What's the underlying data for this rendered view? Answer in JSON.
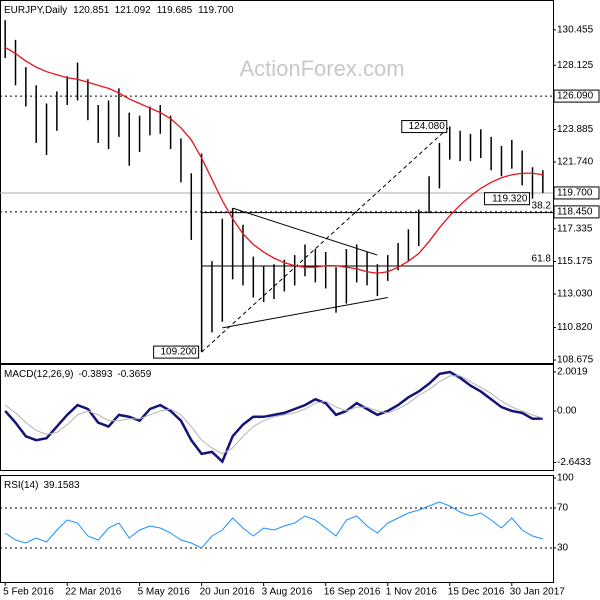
{
  "chart_data": [
    {
      "type": "ohlc",
      "title": "EURJPY,Daily",
      "ohlc": [
        {
          "value": 120.851,
          "label": "120.851"
        },
        {
          "value": 121.092,
          "label": "121.092"
        },
        {
          "value": 119.685,
          "label": "119.685"
        },
        {
          "value": 119.7,
          "label": "119.700"
        }
      ],
      "watermark": "ActionForex.com",
      "categories": [
        "5 Feb 2016",
        null,
        null,
        null,
        null,
        null,
        "22 Mar 2016",
        null,
        null,
        null,
        null,
        null,
        null,
        "5 May 2016",
        null,
        null,
        null,
        null,
        null,
        "20 Jun 2016",
        null,
        null,
        null,
        null,
        null,
        "3 Aug 2016",
        null,
        null,
        null,
        null,
        null,
        "16 Sep 2016",
        null,
        null,
        null,
        null,
        null,
        "1 Nov 2016",
        null,
        null,
        null,
        null,
        null,
        "15 Dec 2016",
        null,
        null,
        null,
        null,
        null,
        "30 Jan 2017",
        null,
        null,
        null
      ],
      "high": [
        131.1,
        129.8,
        128.0,
        126.8,
        125.6,
        126.4,
        127.4,
        128.3,
        127.2,
        125.5,
        125.8,
        126.6,
        125.0,
        124.8,
        125.4,
        125.5,
        124.8,
        123.3,
        121.0,
        122.3,
        115.2,
        118.0,
        118.7,
        117.6,
        115.5,
        114.9,
        115.0,
        115.3,
        115.6,
        116.3,
        116.0,
        115.8,
        114.8,
        116.0,
        116.3,
        115.8,
        115.0,
        115.6,
        116.4,
        117.3,
        118.6,
        120.8,
        123.0,
        124.08,
        123.8,
        123.6,
        123.9,
        123.4,
        122.8,
        123.2,
        122.5,
        121.4,
        121.2
      ],
      "low": [
        128.6,
        126.8,
        125.4,
        123.0,
        122.2,
        123.8,
        125.5,
        125.8,
        124.5,
        123.0,
        122.6,
        123.4,
        121.5,
        122.4,
        123.5,
        123.6,
        122.6,
        120.4,
        116.6,
        109.2,
        110.5,
        111.2,
        114.0,
        113.6,
        112.8,
        112.5,
        112.7,
        113.2,
        113.6,
        114.2,
        113.8,
        113.4,
        111.8,
        112.4,
        113.8,
        113.6,
        112.9,
        113.9,
        114.6,
        115.2,
        116.2,
        118.4,
        120.0,
        121.9,
        121.8,
        121.8,
        122.0,
        121.2,
        120.8,
        121.3,
        120.2,
        119.32,
        119.7
      ],
      "color": "#000000",
      "ma": {
        "color": "#e8141c",
        "values": [
          129.3,
          128.9,
          128.4,
          128.0,
          127.7,
          127.5,
          127.3,
          127.2,
          127.0,
          126.8,
          126.6,
          126.3,
          125.9,
          125.6,
          125.3,
          125.0,
          124.6,
          124.0,
          123.2,
          122.0,
          120.6,
          119.2,
          118.0,
          117.0,
          116.3,
          115.8,
          115.4,
          115.1,
          114.9,
          114.8,
          114.8,
          114.9,
          114.9,
          114.8,
          114.7,
          114.5,
          114.4,
          114.5,
          114.8,
          115.2,
          115.7,
          116.5,
          117.4,
          118.2,
          118.9,
          119.5,
          120.0,
          120.4,
          120.7,
          120.9,
          121.0,
          121.0,
          120.9
        ]
      },
      "ylim": [
        108.48,
        132.43
      ],
      "yticks": [
        130.455,
        128.125,
        123.885,
        {
          "value": 121.74,
          "label": "121.740"
        },
        117.335,
        115.175,
        {
          "value": 113.03,
          "label": "113.030"
        },
        {
          "value": 110.82,
          "label": "110.820"
        },
        108.675
      ],
      "levels": [
        {
          "value": 126.09,
          "label": "126.090",
          "style": "dotted"
        },
        {
          "value": 119.7,
          "label": "119.700",
          "style": "solid"
        },
        {
          "value": 118.45,
          "label": "118.450",
          "style": "dotted"
        }
      ],
      "fibs": [
        {
          "label": "38.2",
          "value": 118.4,
          "from": 19
        },
        {
          "label": "61.8",
          "value": 114.88,
          "from": 19
        }
      ],
      "trendlines": [
        {
          "points": [
            [
              22,
              118.7
            ],
            [
              36,
              115.6
            ]
          ],
          "style": "solid"
        },
        {
          "points": [
            [
              21,
              110.8
            ],
            [
              37,
              112.8
            ]
          ],
          "style": "solid"
        },
        {
          "points": [
            [
              19,
              109.2
            ],
            [
              43,
              124.08
            ]
          ],
          "style": "dashed"
        }
      ],
      "annotations": [
        {
          "label": "124.080",
          "value": 124.08,
          "index": 43
        },
        {
          "label": "119.320",
          "value": 119.32,
          "index": 51
        },
        {
          "label": "109.200",
          "value": 109.2,
          "index": 19
        }
      ]
    },
    {
      "type": "line",
      "title": "MACD(12,26,9)",
      "readout": [
        -0.3893,
        -0.3659
      ],
      "ylim": [
        -3.03,
        2.41
      ],
      "yticks": [
        2.0019,
        {
          "value": 0,
          "label": "0.00"
        },
        -2.6433
      ],
      "series": [
        {
          "color": "#141478",
          "width": 2.5,
          "values": [
            0.0,
            -0.6,
            -1.3,
            -1.5,
            -1.4,
            -0.8,
            -0.2,
            0.3,
            0.1,
            -0.6,
            -0.8,
            -0.2,
            -0.3,
            -0.5,
            0.1,
            0.3,
            0.0,
            -0.5,
            -1.5,
            -2.2,
            -2.1,
            -2.6,
            -1.3,
            -0.7,
            -0.3,
            -0.3,
            -0.2,
            -0.1,
            0.1,
            0.3,
            0.6,
            0.4,
            -0.2,
            0.0,
            0.4,
            0.1,
            -0.2,
            0.0,
            0.3,
            0.7,
            1.0,
            1.4,
            1.9,
            2.0,
            1.7,
            1.3,
            1.0,
            0.6,
            0.2,
            0.0,
            -0.1,
            -0.4,
            -0.3893
          ]
        },
        {
          "color": "#b4b4b4",
          "width": 1,
          "values": [
            0.3,
            -0.1,
            -0.6,
            -1.0,
            -1.2,
            -1.1,
            -0.7,
            -0.2,
            0.0,
            -0.2,
            -0.5,
            -0.5,
            -0.4,
            -0.4,
            -0.2,
            0.0,
            0.1,
            -0.2,
            -0.8,
            -1.5,
            -1.9,
            -2.2,
            -1.9,
            -1.3,
            -0.8,
            -0.5,
            -0.3,
            -0.2,
            -0.1,
            0.1,
            0.4,
            0.5,
            0.2,
            0.0,
            0.2,
            0.2,
            0.0,
            -0.1,
            0.1,
            0.4,
            0.8,
            1.1,
            1.5,
            1.8,
            1.8,
            1.5,
            1.2,
            0.9,
            0.5,
            0.2,
            0.0,
            -0.2,
            -0.3659
          ]
        }
      ]
    },
    {
      "type": "line",
      "title": "RSI(14)",
      "readout": [
        39.1583
      ],
      "ylim": [
        -4,
        103
      ],
      "yticks": [
        100,
        70,
        30
      ],
      "levels": [
        70,
        30
      ],
      "series": [
        {
          "color": "#1e90ff",
          "width": 1,
          "values": [
            45,
            38,
            35,
            40,
            36,
            48,
            58,
            55,
            42,
            38,
            50,
            55,
            40,
            48,
            52,
            50,
            45,
            38,
            35,
            30,
            42,
            48,
            60,
            50,
            42,
            50,
            48,
            52,
            55,
            62,
            58,
            50,
            42,
            58,
            62,
            52,
            45,
            55,
            60,
            65,
            68,
            72,
            76,
            72,
            66,
            62,
            65,
            58,
            50,
            60,
            48,
            42,
            39.1583
          ]
        }
      ]
    }
  ]
}
